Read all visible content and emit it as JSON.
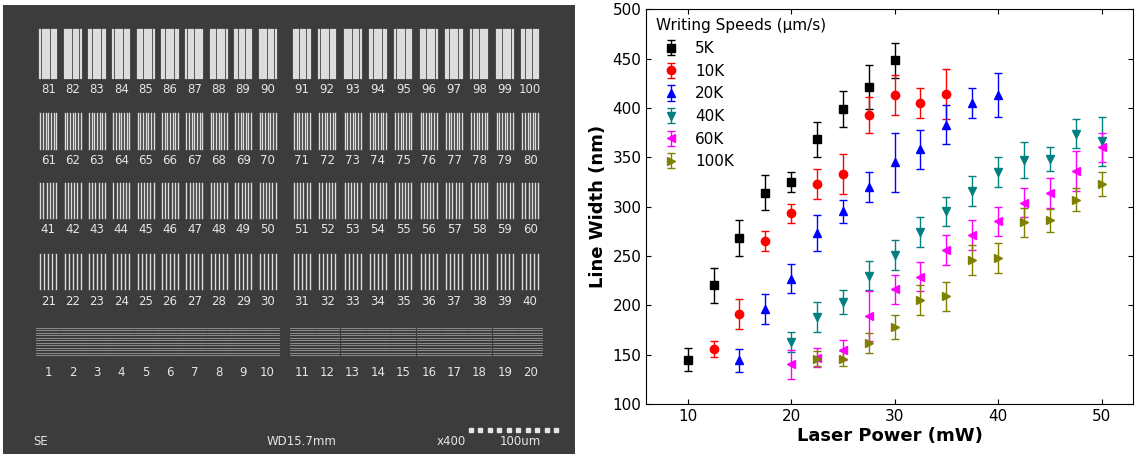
{
  "image": {
    "labels": [
      "1",
      "2",
      "3",
      "4",
      "5",
      "6",
      "7",
      "8",
      "9",
      "10",
      "11",
      "12",
      "13",
      "14",
      "15",
      "16",
      "17",
      "18",
      "19",
      "20",
      "21",
      "22",
      "23",
      "24",
      "25",
      "26",
      "27",
      "28",
      "29",
      "30",
      "31",
      "32",
      "33",
      "34",
      "35",
      "36",
      "37",
      "38",
      "39",
      "40",
      "41",
      "42",
      "43",
      "44",
      "45",
      "46",
      "47",
      "48",
      "49",
      "50",
      "51",
      "52",
      "53",
      "54",
      "55",
      "56",
      "57",
      "58",
      "59",
      "60",
      "61",
      "62",
      "63",
      "64",
      "65",
      "66",
      "67",
      "68",
      "69",
      "70",
      "71",
      "72",
      "73",
      "74",
      "75",
      "76",
      "77",
      "78",
      "79",
      "80",
      "81",
      "82",
      "83",
      "84",
      "85",
      "86",
      "87",
      "88",
      "89",
      "90",
      "91",
      "92",
      "93",
      "94",
      "95",
      "96",
      "97",
      "98",
      "99",
      "100"
    ],
    "footer": [
      "SE",
      "WD15.7mm",
      "x400",
      "100um"
    ]
  },
  "chart_data": {
    "type": "scatter",
    "x_label": "Laser Power (mW)",
    "y_label": "Line Width (nm)",
    "legend_title": "Writing Speeds (μm/s)",
    "legend": "upper left",
    "xlim": [
      6,
      53
    ],
    "xticks": [
      10,
      20,
      30,
      40,
      50
    ],
    "ylim": [
      100,
      500
    ],
    "yticks": [
      100,
      150,
      200,
      250,
      300,
      350,
      400,
      450,
      500
    ],
    "series": [
      {
        "name": "5K",
        "color": "#000000",
        "marker": "square",
        "x": [
          10,
          12.5,
          15,
          17.5,
          20,
          22.5,
          25,
          27.5,
          30
        ],
        "values": [
          145,
          220,
          268,
          314,
          325,
          368,
          399,
          421,
          448
        ],
        "errors": [
          12,
          18,
          18,
          18,
          10,
          18,
          18,
          22,
          18
        ]
      },
      {
        "name": "10K",
        "color": "#ff0000",
        "marker": "circle",
        "x": [
          12.5,
          15,
          17.5,
          20,
          22.5,
          25,
          27.5,
          30,
          32.5,
          35
        ],
        "values": [
          156,
          191,
          265,
          293,
          323,
          333,
          393,
          413,
          405,
          414
        ],
        "errors": [
          8,
          15,
          10,
          10,
          15,
          20,
          18,
          20,
          15,
          25
        ]
      },
      {
        "name": "20K",
        "color": "#0000ff",
        "marker": "triangle_up",
        "x": [
          15,
          17.5,
          20,
          22.5,
          25,
          27.5,
          30,
          32.5,
          35,
          37.5,
          40
        ],
        "values": [
          144,
          196,
          227,
          273,
          295,
          320,
          345,
          358,
          383,
          405,
          413
        ],
        "errors": [
          12,
          15,
          15,
          18,
          12,
          15,
          30,
          20,
          20,
          15,
          22
        ]
      },
      {
        "name": "40K",
        "color": "#008080",
        "marker": "triangle_down",
        "x": [
          20,
          22.5,
          25,
          27.5,
          30,
          32.5,
          35,
          37.5,
          40,
          42.5,
          45,
          47.5,
          50
        ],
        "values": [
          163,
          188,
          203,
          230,
          251,
          274,
          295,
          316,
          335,
          347,
          348,
          374,
          366
        ],
        "errors": [
          10,
          15,
          12,
          15,
          15,
          15,
          15,
          15,
          15,
          18,
          12,
          15,
          25
        ]
      },
      {
        "name": "60K",
        "color": "#ff00ff",
        "marker": "triangle_left",
        "x": [
          20,
          22.5,
          25,
          27.5,
          30,
          32.5,
          35,
          37.5,
          40,
          42.5,
          45,
          47.5,
          50
        ],
        "values": [
          140,
          147,
          155,
          189,
          216,
          229,
          256,
          271,
          285,
          304,
          314,
          336,
          360
        ],
        "errors": [
          15,
          10,
          10,
          25,
          15,
          15,
          15,
          15,
          15,
          15,
          15,
          20,
          15
        ]
      },
      {
        "name": "100K",
        "color": "#808000",
        "marker": "triangle_right",
        "x": [
          22.5,
          25,
          27.5,
          30,
          32.5,
          35,
          37.5,
          40,
          42.5,
          45,
          47.5,
          50
        ],
        "values": [
          146,
          146,
          162,
          178,
          205,
          209,
          246,
          248,
          284,
          286,
          307,
          323
        ],
        "errors": [
          8,
          8,
          10,
          12,
          15,
          15,
          15,
          15,
          15,
          12,
          12,
          12
        ]
      }
    ]
  }
}
